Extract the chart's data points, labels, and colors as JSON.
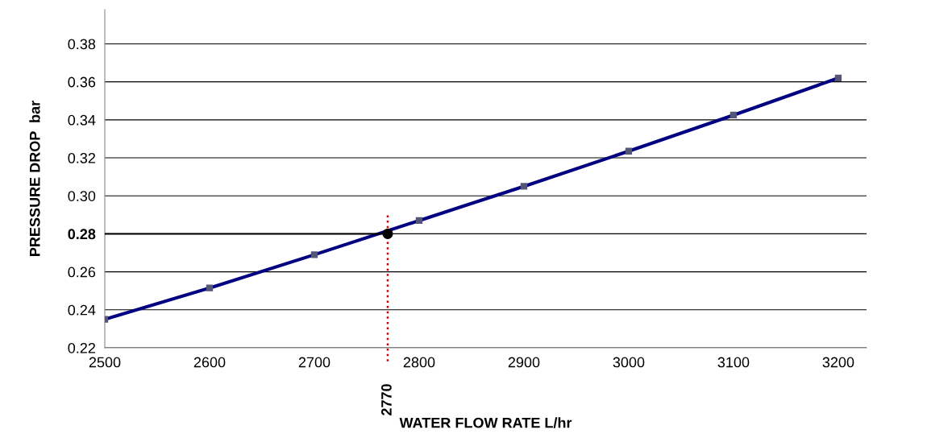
{
  "chart_data": {
    "type": "line",
    "xlabel": "WATER FLOW RATE L/hr",
    "ylabel": "PRESSURE DROP  bar",
    "x": [
      2500,
      2600,
      2700,
      2800,
      2900,
      3000,
      3100,
      3200
    ],
    "series": [
      {
        "color": "#000080",
        "values": [
          0.235,
          0.2515,
          0.269,
          0.287,
          0.305,
          0.3235,
          0.3425,
          0.362
        ],
        "marker": "square"
      },
      {
        "type": "scatter",
        "color": "#000000",
        "x": [
          2770
        ],
        "values": [
          0.28
        ],
        "marker": "circle"
      }
    ],
    "xlim": [
      2500,
      3227
    ],
    "ylim": [
      0.22,
      0.398
    ],
    "xticks": [
      2500,
      2600,
      2700,
      2800,
      2900,
      3000,
      3100,
      3200
    ],
    "yticks": [
      {
        "value": 0.22,
        "label": "0.22"
      },
      {
        "value": 0.24,
        "label": "0.24"
      },
      {
        "value": 0.26,
        "label": "0.26"
      },
      {
        "value": 0.28,
        "label": "0.28"
      },
      {
        "value": 0.3,
        "label": "0.30"
      },
      {
        "value": 0.32,
        "label": "0.32"
      },
      {
        "value": 0.34,
        "label": "0.34"
      },
      {
        "value": 0.36,
        "label": "0.36"
      },
      {
        "value": 0.38,
        "label": "0.38"
      }
    ],
    "ref_lines": [
      {
        "axis": "y",
        "value": 0.28,
        "color": "#000000",
        "line_style": "solid"
      },
      {
        "axis": "x",
        "value": 2770,
        "label": "2770",
        "color": "#cc0000",
        "line_style": "dotted"
      }
    ],
    "grid": "y"
  }
}
